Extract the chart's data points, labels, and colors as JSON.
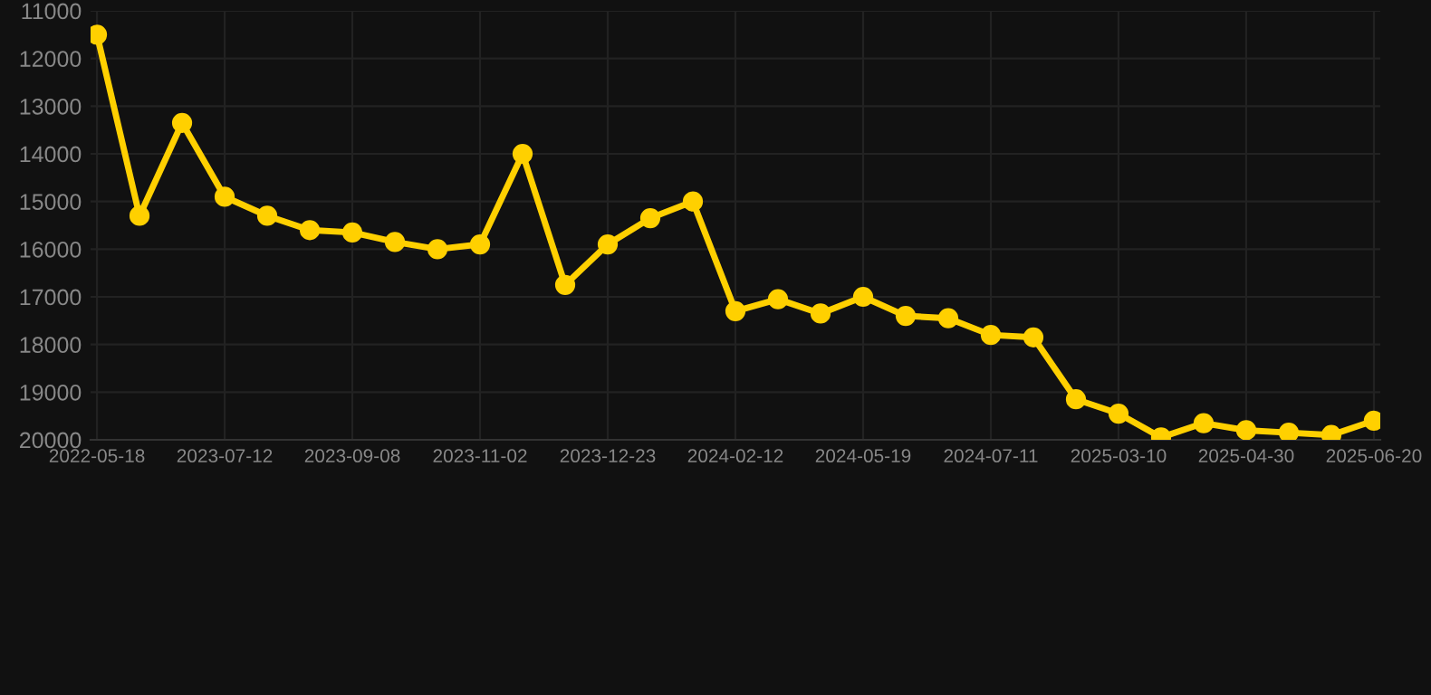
{
  "chart_data": {
    "type": "line",
    "categories": [
      "2022-05-18",
      null,
      null,
      "2023-07-12",
      null,
      null,
      "2023-09-08",
      null,
      null,
      "2023-11-02",
      null,
      null,
      "2023-12-23",
      null,
      null,
      "2024-02-12",
      null,
      null,
      "2024-05-19",
      null,
      null,
      "2024-07-11",
      null,
      null,
      "2025-03-10",
      null,
      null,
      "2025-04-30",
      null,
      null,
      "2025-06-20"
    ],
    "series": [
      {
        "color": "#ffd000",
        "values": [
          11500,
          15300,
          13350,
          14900,
          15300,
          15600,
          15650,
          15850,
          16000,
          15900,
          14000,
          16750,
          15900,
          15350,
          15000,
          17300,
          17050,
          17350,
          17000,
          17400,
          17450,
          17800,
          17850,
          19150,
          19450,
          19950,
          19650,
          19800,
          19850,
          19900,
          19600
        ]
      }
    ],
    "ylim": [
      20000,
      11000
    ],
    "yticks": [
      11000,
      12000,
      13000,
      14000,
      15000,
      16000,
      17000,
      18000,
      19000,
      20000
    ],
    "grid": true,
    "marker": "circle",
    "line_style": "solid"
  }
}
